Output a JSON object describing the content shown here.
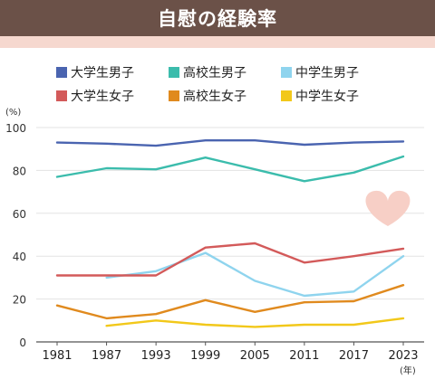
{
  "header": {
    "title": "自慰の経験率"
  },
  "chart_data": {
    "type": "line",
    "title": "自慰の経験率",
    "y_unit": "(%)",
    "x_unit": "(年)",
    "x": [
      1981,
      1987,
      1993,
      1999,
      2005,
      2011,
      2017,
      2023
    ],
    "xticks": [
      "1981",
      "1987",
      "1993",
      "1999",
      "2005",
      "2011",
      "2017",
      "2023"
    ],
    "ylim": [
      0,
      100
    ],
    "yticks": [
      0,
      20,
      40,
      60,
      80,
      100
    ],
    "grid": true,
    "legend_position": "top",
    "series": [
      {
        "name": "大学生男子",
        "color": "#4a64b0",
        "values": [
          93,
          92.5,
          91.5,
          94,
          94,
          92,
          93,
          93.5
        ]
      },
      {
        "name": "高校生男子",
        "color": "#3bbcac",
        "values": [
          77,
          81,
          80.5,
          86,
          80.5,
          75,
          79,
          86.5
        ]
      },
      {
        "name": "中学生男子",
        "color": "#8fd4ee",
        "values": [
          null,
          30,
          33,
          41.5,
          28.5,
          21.5,
          23.5,
          40
        ]
      },
      {
        "name": "大学生女子",
        "color": "#d35a5a",
        "values": [
          31,
          31,
          31,
          44,
          46,
          37,
          40,
          43.5
        ]
      },
      {
        "name": "高校生女子",
        "color": "#e08a1e",
        "values": [
          17,
          11,
          13,
          19.5,
          14,
          18.5,
          19,
          26.5
        ]
      },
      {
        "name": "中学生女子",
        "color": "#f2c81a",
        "values": [
          null,
          7.5,
          10,
          8,
          7,
          8,
          8,
          11
        ]
      }
    ],
    "decoration": {
      "heart_color": "#f7cfc6"
    }
  }
}
